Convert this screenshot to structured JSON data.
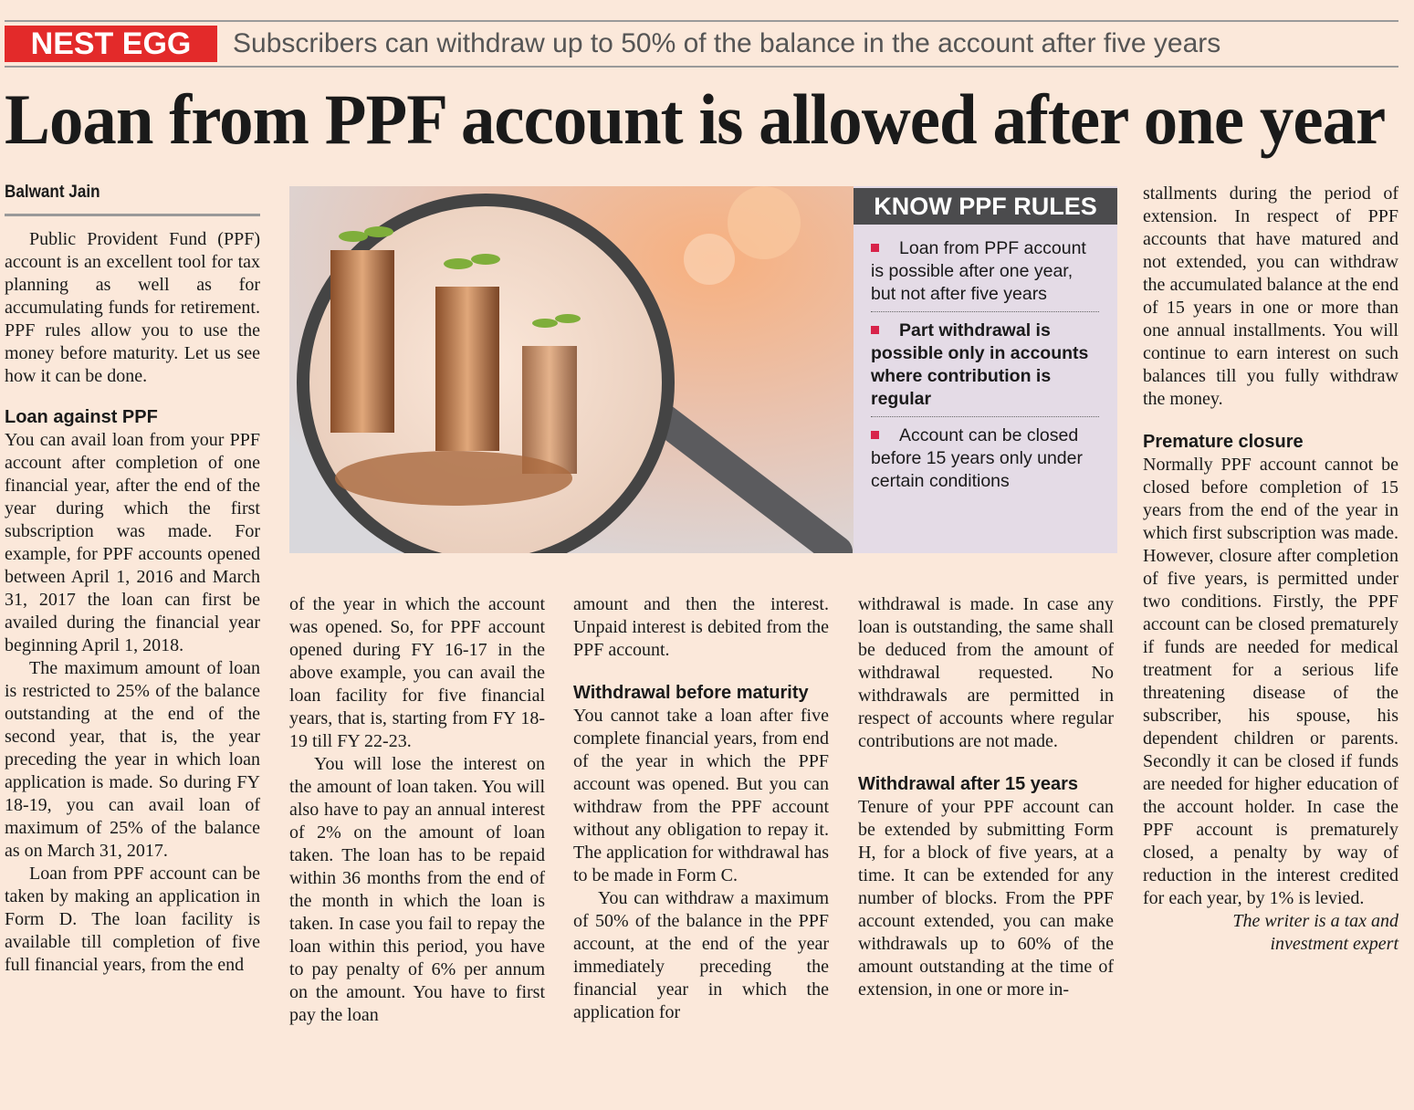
{
  "header": {
    "tag": "NEST EGG",
    "subtitle": "Subscribers can withdraw up to 50% of the balance in the account after five years",
    "title": "Loan from PPF account is allowed after one year",
    "byline": "Balwant Jain"
  },
  "rules_box": {
    "title": "KNOW PPF RULES",
    "items": [
      "Loan from PPF account is possible after one year, but not after five years",
      "Part withdrawal is possible only in accounts where contribution is regular",
      "Account can be closed before 15 years only under certain conditions"
    ]
  },
  "columns": [
    [
      {
        "kind": "para",
        "text": "Public Provident Fund (PPF) account is an excellent tool for tax planning as well as for accumulating funds for retirement. PPF rules allow you to use the money before maturity. Let us see how it can be done."
      },
      {
        "kind": "heading",
        "text": "Loan against PPF"
      },
      {
        "kind": "cont",
        "text": "You can avail loan from your PPF account after completion of one financial year, after the end of the year during which the first subscription was made. For example, for PPF accounts opened between April 1, 2016 and March 31, 2017 the loan can first be availed during the financial year beginning April 1, 2018."
      },
      {
        "kind": "para",
        "text": "The maximum amount of loan is restricted to 25% of the balance outstanding at the end of the second year, that is, the year preceding the year in which loan application is made. So during FY 18-19, you can avail loan of maximum of 25% of the balance as on March 31, 2017."
      },
      {
        "kind": "para",
        "text": "Loan from PPF account can be taken by making an application in Form D. The loan facility is available till completion of five full financial years, from the end"
      }
    ],
    [
      {
        "kind": "cont",
        "text": "of the year in which the account was opened. So, for PPF account opened during FY 16-17 in the above example, you can avail the loan facility for five financial years, that is, starting from FY 18-19 till FY 22-23."
      },
      {
        "kind": "para",
        "text": "You will lose the interest on the amount of loan taken. You will also have to pay an annual interest of 2% on the amount of loan taken. The loan has to be repaid within 36 months from the end of the month in which the loan is taken. In case you fail to repay the loan within this period, you have to pay penalty of 6% per annum on the amount. You have to first pay the loan"
      }
    ],
    [
      {
        "kind": "cont",
        "text": "amount and then the interest. Unpaid interest is debited from the PPF account."
      },
      {
        "kind": "heading",
        "text": "Withdrawal before maturity"
      },
      {
        "kind": "cont",
        "text": "You cannot take a loan after five complete financial years, from end of the year in which the PPF account was opened. But you can withdraw from the PPF account without any obligation to repay it. The application for withdrawal has to be made in Form C."
      },
      {
        "kind": "para",
        "text": "You can withdraw a maximum of 50% of the balance in the PPF account, at the end of the year immediately preceding the financial year in which the application for"
      }
    ],
    [
      {
        "kind": "cont",
        "text": "withdrawal is made. In case any loan is outstanding, the same shall be deduced from the amount of withdrawal requested. No withdrawals are permitted in respect of accounts where regular contributions are not made."
      },
      {
        "kind": "heading",
        "text": "Withdrawal after 15 years"
      },
      {
        "kind": "cont",
        "text": "Tenure of your PPF account can be extended by submitting Form H, for a block of five years, at a time. It can be extended for any number of blocks. From the PPF account extended, you can make withdrawals up to 60% of the amount outstanding at the time of extension, in one or more in-"
      }
    ],
    [
      {
        "kind": "cont",
        "text": "stallments during the period of extension. In respect of PPF accounts that have matured and not extended, you can withdraw the accumulated balance at the end of 15 years in one or more than one annual installments. You will continue to earn interest on such balances till you fully withdraw the money."
      },
      {
        "kind": "heading",
        "text": "Premature closure"
      },
      {
        "kind": "cont",
        "text": "Normally PPF account cannot be closed before completion of 15 years from the end of the year in which first subscription was made. However, closure after completion of five years, is permitted under two conditions. Firstly, the PPF account can be closed prematurely if funds are needed for medical treatment for a serious life threatening disease of the subscriber, his spouse, his dependent children or parents. Secondly it can be closed if funds are needed for higher education of the account holder. In case the PPF account is prematurely closed, a penalty by way of reduction in the interest credited for each year, by 1% is levied."
      },
      {
        "kind": "credit",
        "text": "The writer is a tax and investment expert"
      }
    ]
  ]
}
